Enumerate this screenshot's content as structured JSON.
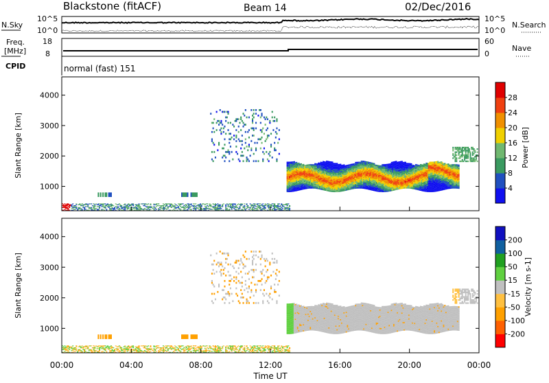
{
  "header": {
    "radar": "Blackstone (fitACF)",
    "beam": "Beam 14",
    "date": "02/Dec/2016"
  },
  "top_panels": {
    "nsky": {
      "label": "N.Sky",
      "right_label": "N.Search",
      "ticks_left": [
        "10^5",
        "10^0"
      ],
      "ticks_right": [
        "10^5",
        "10^0"
      ]
    },
    "freq": {
      "label_line1": "Freq.",
      "label_line2": "[MHz]",
      "ticks_left": [
        "18",
        "8"
      ],
      "right_label": "Nave",
      "ticks_right": [
        "60",
        "0"
      ]
    },
    "cpid": {
      "label": "CPID",
      "value": "normal (fast) 151"
    }
  },
  "colors": {
    "power": [
      "#1010f0",
      "#2050c0",
      "#3a9a60",
      "#70b870",
      "#f0d000",
      "#f09000",
      "#f04010",
      "#e00000"
    ],
    "velocity": [
      "#ff0000",
      "#ff6000",
      "#ffa000",
      "#ffc040",
      "#c0c0c0",
      "#60d040",
      "#20a020",
      "#1060a0",
      "#1010c0"
    ]
  },
  "chart_data": [
    {
      "type": "heatmap",
      "name": "power",
      "ylabel": "Slant Range [km]",
      "y_ticks": [
        1000,
        2000,
        3000,
        4000
      ],
      "ylim": [
        200,
        4600
      ],
      "xlim": [
        0,
        24
      ],
      "colorbar": {
        "label": "Power [dB]",
        "ticks": [
          "4",
          "8",
          "12",
          "16",
          "20",
          "24",
          "28"
        ],
        "range": [
          0,
          32
        ]
      },
      "regions": [
        {
          "desc": "ground scatter band",
          "t0": 0,
          "t1": 13,
          "r0": 200,
          "r1": 420,
          "level": 12
        },
        {
          "desc": "near-range patch",
          "t0": 0,
          "t1": 0.5,
          "r0": 200,
          "r1": 350,
          "level": 30
        },
        {
          "desc": "main ionospheric band",
          "t0": 12.9,
          "t1": 22.8,
          "r0": 850,
          "r1": 1750,
          "level": 22
        },
        {
          "desc": "far patch",
          "t0": 22.5,
          "t1": 23.9,
          "r0": 1800,
          "r1": 2300,
          "level": 12
        },
        {
          "desc": "sparse scatter",
          "t0": 8,
          "t1": 12,
          "r0": 1800,
          "r1": 3600,
          "level": 6
        }
      ]
    },
    {
      "type": "heatmap",
      "name": "velocity",
      "ylabel": "Slant Range [km]",
      "xlabel": "Time UT",
      "x_ticks": [
        "00:00",
        "04:00",
        "08:00",
        "12:00",
        "16:00",
        "20:00",
        "00:00"
      ],
      "y_ticks": [
        1000,
        2000,
        3000,
        4000
      ],
      "ylim": [
        200,
        4600
      ],
      "xlim": [
        0,
        24
      ],
      "colorbar": {
        "label": "Velocity [m s-1]",
        "ticks": [
          "200",
          "100",
          "50",
          "15",
          "-15",
          "-50",
          "-100",
          "-200"
        ],
        "range": [
          -250,
          250
        ]
      },
      "regions": [
        {
          "desc": "main band ground-scatter flagged",
          "t0": 12.9,
          "t1": 22.8,
          "r0": 850,
          "r1": 1750,
          "level": 0
        },
        {
          "desc": "low range band",
          "t0": 0,
          "t1": 13,
          "r0": 200,
          "r1": 600,
          "level": -40
        }
      ]
    }
  ]
}
